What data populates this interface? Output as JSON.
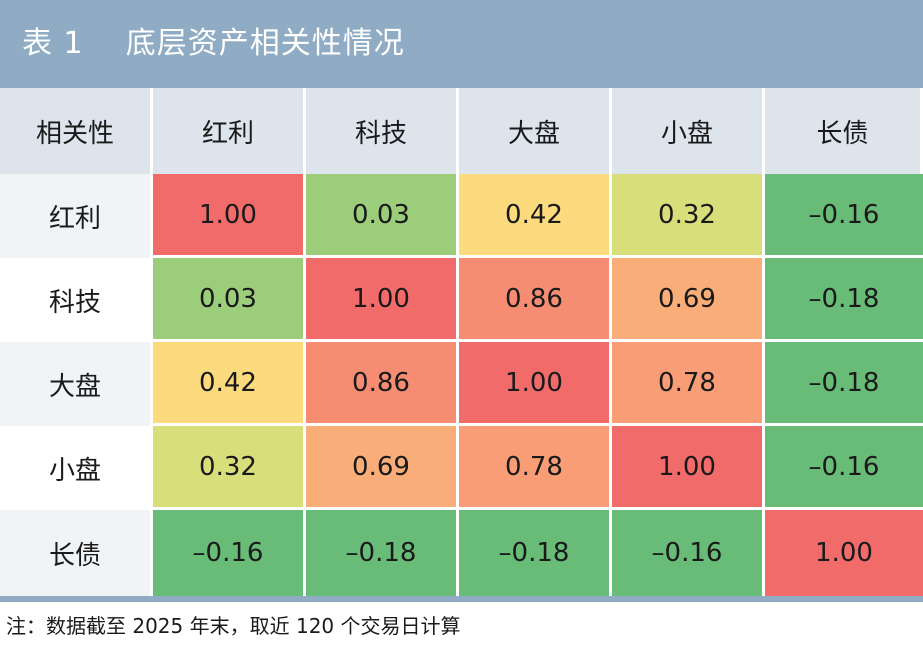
{
  "title": "表 1    底层资产相关性情况",
  "note": "注：数据截至 2025 年末，取近 120 个交易日计算",
  "chart_data": {
    "type": "heatmap",
    "title": "表 1    底层资产相关性情况",
    "corner_label": "相关性",
    "columns": [
      "红利",
      "科技",
      "大盘",
      "小盘",
      "长债"
    ],
    "rows": [
      "红利",
      "科技",
      "大盘",
      "小盘",
      "长债"
    ],
    "values": [
      [
        "1.00",
        "0.03",
        "0.42",
        "0.32",
        "–0.16"
      ],
      [
        "0.03",
        "1.00",
        "0.86",
        "0.69",
        "–0.18"
      ],
      [
        "0.42",
        "0.86",
        "1.00",
        "0.78",
        "–0.18"
      ],
      [
        "0.32",
        "0.69",
        "0.78",
        "1.00",
        "–0.16"
      ],
      [
        "–0.16",
        "–0.18",
        "–0.18",
        "–0.16",
        "1.00"
      ]
    ],
    "colors": [
      [
        "#f26b6b",
        "#9ccd7b",
        "#fcdb7f",
        "#d8df7a",
        "#68bc78"
      ],
      [
        "#9ccd7b",
        "#f26b6b",
        "#f68c71",
        "#f9ad79",
        "#68bc78"
      ],
      [
        "#fcdb7f",
        "#f68c71",
        "#f26b6b",
        "#f89d75",
        "#68bc78"
      ],
      [
        "#d8df7a",
        "#f9ad79",
        "#f89d75",
        "#f26b6b",
        "#68bc78"
      ],
      [
        "#68bc78",
        "#68bc78",
        "#68bc78",
        "#68bc78",
        "#f26b6b"
      ]
    ]
  },
  "colors": {
    "title_bar": "#8facc4",
    "header_bg": "#dde4ec",
    "row_label_shade": "#f1f4f7"
  }
}
